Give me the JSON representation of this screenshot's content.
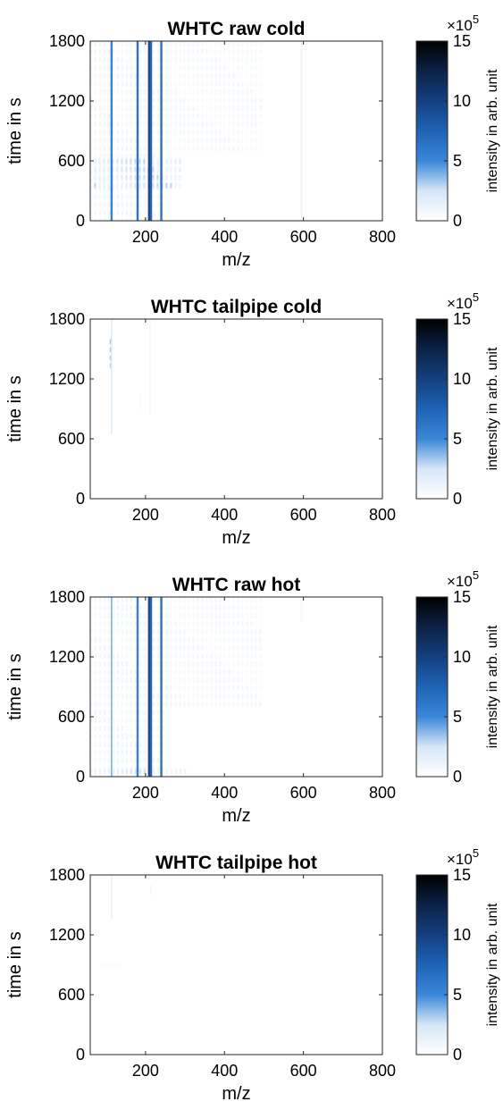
{
  "colorbar": {
    "label": "intensity in arb. unit",
    "exponent_base": "×10",
    "exponent_power": "5",
    "ticks": [
      5,
      10,
      15
    ],
    "range": [
      0,
      15
    ],
    "colormap": [
      "#ffffff",
      "#d6e6f7",
      "#3a87d8",
      "#1f63b5",
      "#143f80",
      "#0b2247",
      "#000000"
    ]
  },
  "chart_data": [
    {
      "type": "heatmap",
      "title": "WHTC raw cold",
      "xlabel": "m/z",
      "ylabel": "time in s",
      "xlim": [
        60,
        800
      ],
      "ylim": [
        0,
        1800
      ],
      "xticks": [
        200,
        400,
        600,
        800
      ],
      "yticks": [
        0,
        600,
        1200,
        1800
      ],
      "color_range": [
        0,
        15
      ],
      "features": [
        {
          "kind": "line",
          "x": 114,
          "y0": 0,
          "y1": 1800,
          "intensity": 6
        },
        {
          "kind": "line",
          "x": 180,
          "y0": 0,
          "y1": 1800,
          "intensity": 7
        },
        {
          "kind": "line",
          "x": 209,
          "y0": 0,
          "y1": 1800,
          "intensity": 10
        },
        {
          "kind": "line",
          "x": 214,
          "y0": 0,
          "y1": 1800,
          "intensity": 8
        },
        {
          "kind": "line",
          "x": 240,
          "y0": 0,
          "y1": 1800,
          "intensity": 7
        },
        {
          "kind": "line",
          "x": 595,
          "y0": 0,
          "y1": 1800,
          "intensity": 1.2
        },
        {
          "kind": "patch",
          "x0": 70,
          "x1": 290,
          "y0": 300,
          "y1": 620,
          "intensity": 3
        },
        {
          "kind": "patch",
          "x0": 240,
          "x1": 500,
          "y0": 700,
          "y1": 1800,
          "intensity": 1.2
        },
        {
          "kind": "patch",
          "x0": 60,
          "x1": 250,
          "y0": 0,
          "y1": 1800,
          "intensity": 1.5
        }
      ]
    },
    {
      "type": "heatmap",
      "title": "WHTC tailpipe cold",
      "xlabel": "m/z",
      "ylabel": "time in s",
      "xlim": [
        60,
        800
      ],
      "ylim": [
        0,
        1800
      ],
      "xticks": [
        200,
        400,
        600,
        800
      ],
      "yticks": [
        0,
        600,
        1200,
        1800
      ],
      "color_range": [
        0,
        15
      ],
      "features": [
        {
          "kind": "line",
          "x": 114,
          "y0": 650,
          "y1": 1800,
          "intensity": 2
        },
        {
          "kind": "patch",
          "x0": 110,
          "x1": 120,
          "y0": 1350,
          "y1": 1600,
          "intensity": 5
        },
        {
          "kind": "line",
          "x": 212,
          "y0": 850,
          "y1": 1800,
          "intensity": 0.8
        },
        {
          "kind": "line",
          "x": 188,
          "y0": 900,
          "y1": 1050,
          "intensity": 0.6
        }
      ]
    },
    {
      "type": "heatmap",
      "title": "WHTC raw hot",
      "xlabel": "m/z",
      "ylabel": "time in s",
      "xlim": [
        60,
        800
      ],
      "ylim": [
        0,
        1800
      ],
      "xticks": [
        200,
        400,
        600,
        800
      ],
      "yticks": [
        0,
        600,
        1200,
        1800
      ],
      "color_range": [
        0,
        15
      ],
      "features": [
        {
          "kind": "line",
          "x": 114,
          "y0": 0,
          "y1": 1800,
          "intensity": 4
        },
        {
          "kind": "line",
          "x": 180,
          "y0": 0,
          "y1": 1800,
          "intensity": 6
        },
        {
          "kind": "line",
          "x": 209,
          "y0": 0,
          "y1": 1800,
          "intensity": 10
        },
        {
          "kind": "line",
          "x": 214,
          "y0": 0,
          "y1": 1800,
          "intensity": 8
        },
        {
          "kind": "line",
          "x": 240,
          "y0": 0,
          "y1": 1800,
          "intensity": 7
        },
        {
          "kind": "line",
          "x": 595,
          "y0": 1550,
          "y1": 1800,
          "intensity": 0.8
        },
        {
          "kind": "patch",
          "x0": 60,
          "x1": 300,
          "y0": 0,
          "y1": 80,
          "intensity": 2.5
        },
        {
          "kind": "patch",
          "x0": 240,
          "x1": 490,
          "y0": 700,
          "y1": 1800,
          "intensity": 1.3
        },
        {
          "kind": "patch",
          "x0": 60,
          "x1": 250,
          "y0": 0,
          "y1": 1800,
          "intensity": 1.5
        }
      ]
    },
    {
      "type": "heatmap",
      "title": "WHTC tailpipe hot",
      "xlabel": "m/z",
      "ylabel": "time in s",
      "xlim": [
        60,
        800
      ],
      "ylim": [
        0,
        1800
      ],
      "xticks": [
        200,
        400,
        600,
        800
      ],
      "yticks": [
        0,
        600,
        1200,
        1800
      ],
      "color_range": [
        0,
        15
      ],
      "features": [
        {
          "kind": "line",
          "x": 114,
          "y0": 1350,
          "y1": 1800,
          "intensity": 1.5
        },
        {
          "kind": "line",
          "x": 214,
          "y0": 1600,
          "y1": 1700,
          "intensity": 0.8
        },
        {
          "kind": "patch",
          "x0": 90,
          "x1": 140,
          "y0": 905,
          "y1": 925,
          "intensity": 0.7
        }
      ]
    }
  ]
}
